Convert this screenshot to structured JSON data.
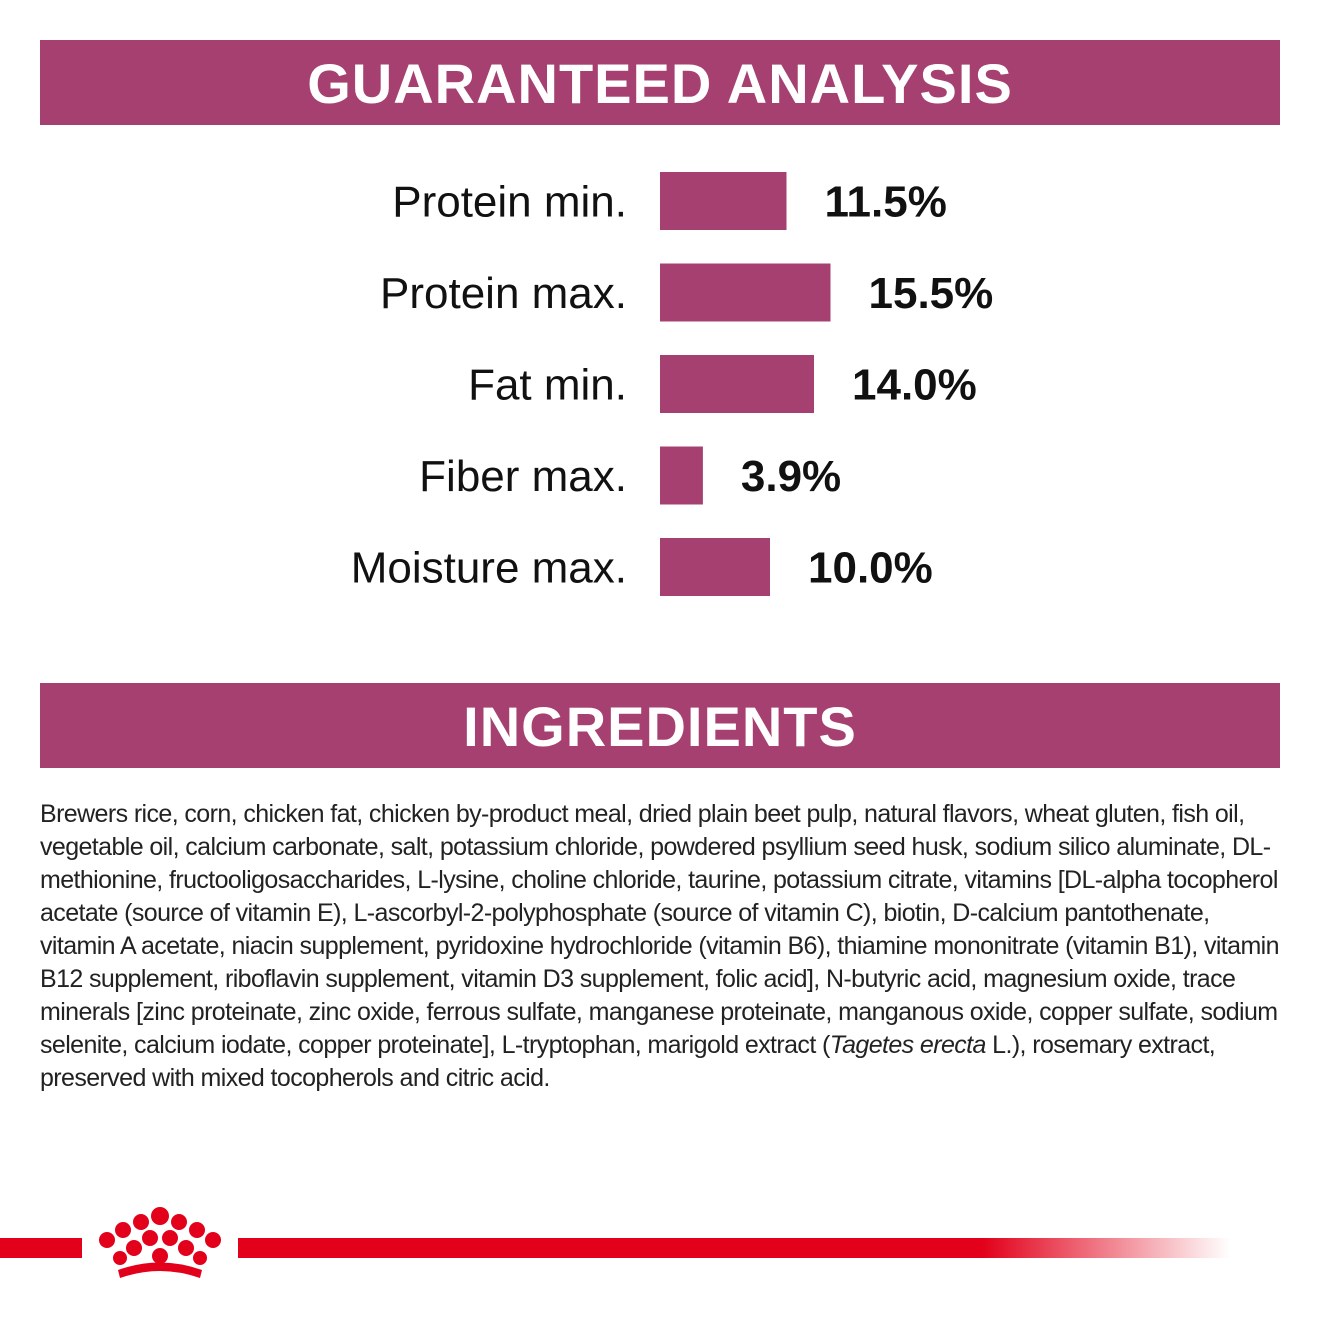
{
  "chart_data": {
    "type": "bar",
    "title": "GUARANTEED ANALYSIS",
    "categories": [
      "Protein min.",
      "Protein max.",
      "Fat min.",
      "Fiber max.",
      "Moisture max."
    ],
    "values": [
      11.5,
      15.5,
      14.0,
      3.9,
      10.0
    ],
    "value_labels": [
      "11.5%",
      "15.5%",
      "14.0%",
      "3.9%",
      "10.0%"
    ],
    "color": "#a64070"
  },
  "ingredients": {
    "title": "INGREDIENTS",
    "text_before": "Brewers rice, corn, chicken fat, chicken by-product meal, dried plain beet pulp, natural flavors, wheat gluten, fish oil, vegetable oil, calcium carbonate, salt, potassium chloride, powdered psyllium seed husk, sodium silico aluminate, DL-methionine, fructooligosaccharides, L-lysine, choline chloride, taurine, potassium citrate, vitamins [DL-alpha tocopherol acetate (source of vitamin E), L-ascorbyl-2-polyphosphate (source of vitamin C), biotin, D-calcium pantothenate, vitamin A acetate, niacin supplement, pyridoxine hydrochloride (vitamin B6), thiamine mononitrate (vitamin B1), vitamin B12 supplement, riboflavin supplement, vitamin D3 supplement, folic acid], N-butyric acid, magnesium oxide, trace minerals [zinc proteinate, zinc oxide, ferrous sulfate, manganese proteinate, manganous oxide, copper sulfate, sodium selenite, calcium iodate, copper proteinate], L-tryptophan, marigold extract (",
    "text_italic": "Tagetes erecta",
    "text_after": " L.), rosemary extract, preserved with mixed tocopherols and citric acid."
  }
}
